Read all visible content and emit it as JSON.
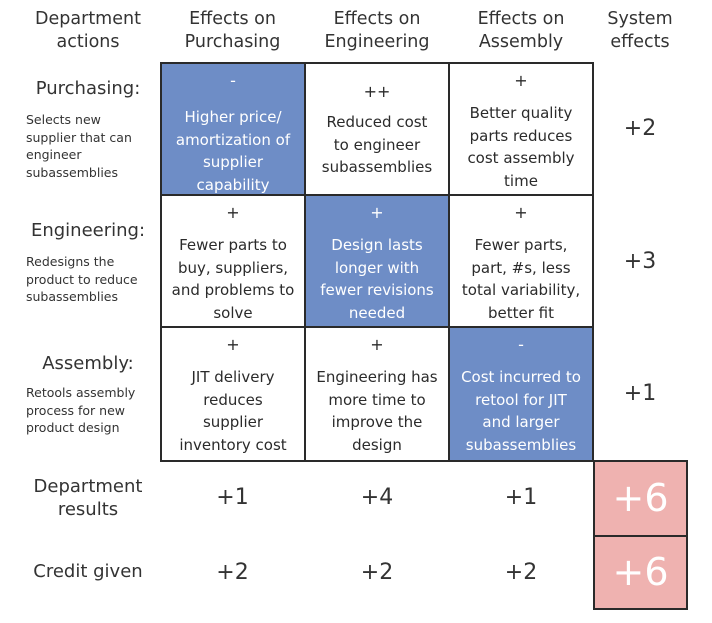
{
  "headers": {
    "actions": "Department\nactions",
    "purchasing": "Effects on\nPurchasing",
    "engineering": "Effects on\nEngineering",
    "assembly": "Effects on\nAssembly",
    "system": "System\neffects"
  },
  "rows": [
    {
      "title": "Purchasing:",
      "desc": "Selects new\nsupplier that can\nengineer\nsubassemblies",
      "cells": [
        {
          "sign": "-",
          "text": "Higher price/\namortization of\nsupplier\ncapability"
        },
        {
          "sign": "++",
          "text": "Reduced      cost\nto engineer\nsubassemblies"
        },
        {
          "sign": "+",
          "text": "Better quality\nparts reduces\ncost assembly\ntime"
        }
      ],
      "system": "+2"
    },
    {
      "title": "Engineering:",
      "desc": "Redesigns the\nproduct to reduce\nsubassemblies",
      "cells": [
        {
          "sign": "+",
          "text": "Fewer parts to\nbuy, suppliers,\nand problems to\nsolve"
        },
        {
          "sign": "+",
          "text": "Design lasts\nlonger with\nfewer revisions\nneeded"
        },
        {
          "sign": "+",
          "text": "Fewer parts,\npart, #s, less\ntotal variability,\nbetter fit"
        }
      ],
      "system": "+3"
    },
    {
      "title": "Assembly:",
      "desc": "Retools assembly\nprocess for new\nproduct design",
      "cells": [
        {
          "sign": "+",
          "text": "JIT delivery\nreduces\nsupplier\ninventory cost"
        },
        {
          "sign": "+",
          "text": "Engineering has\nmore time to\nimprove the\ndesign"
        },
        {
          "sign": "-",
          "text": "Cost incurred to\nretool for JIT\nand larger\nsubassemblies"
        }
      ],
      "system": "+1"
    }
  ],
  "department_results": {
    "label": "Department\nresults",
    "values": [
      "+1",
      "+4",
      "+1"
    ],
    "total": "+6"
  },
  "credit_given": {
    "label": "Credit given",
    "values": [
      "+2",
      "+2",
      "+2"
    ],
    "total": "+6"
  },
  "colors": {
    "diagonal": "#6e8dc6",
    "total": "#efb2b0",
    "border": "#2a2a2a"
  }
}
